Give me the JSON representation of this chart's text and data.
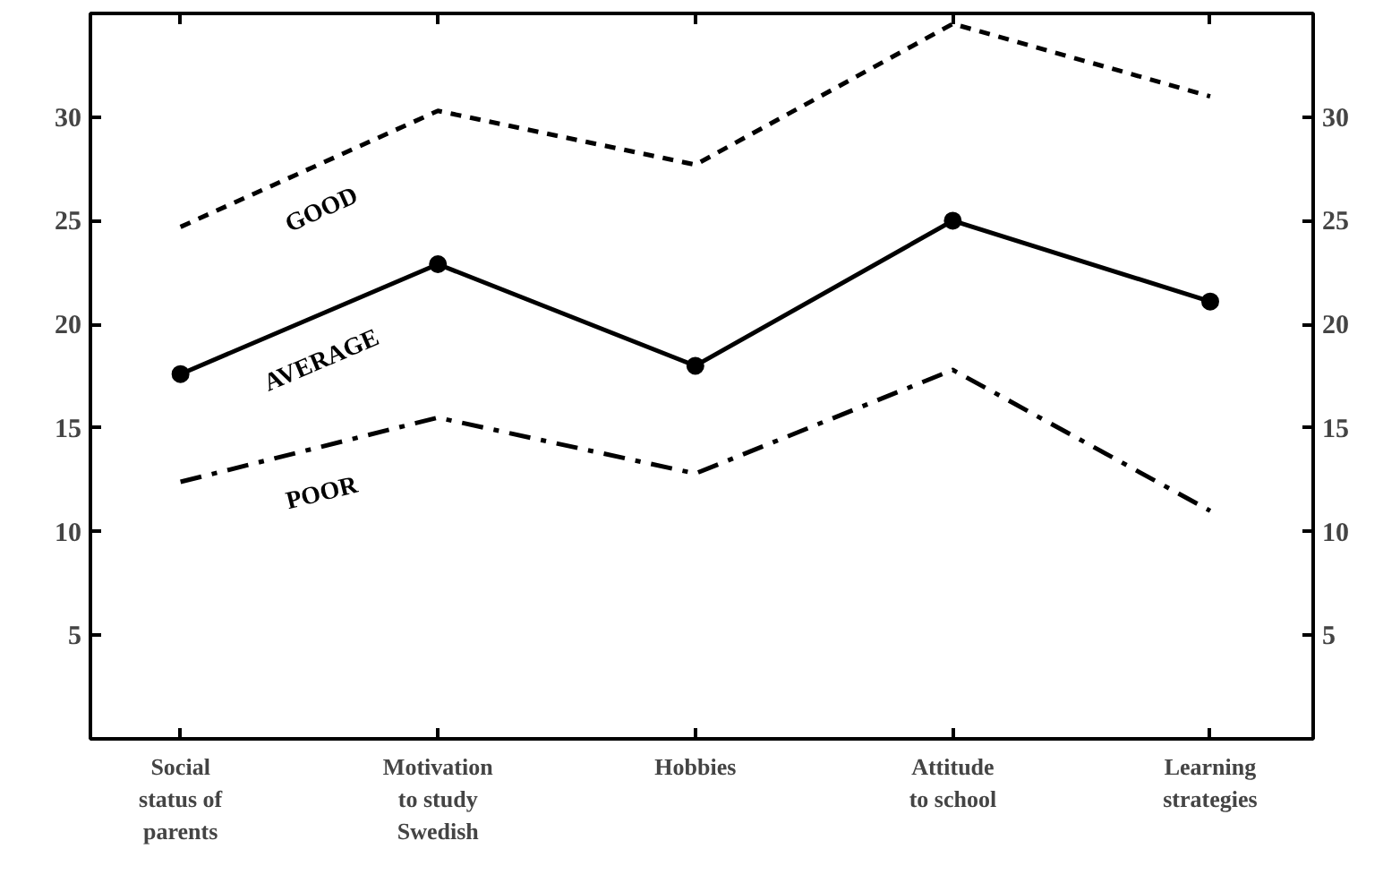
{
  "chart_data": {
    "type": "line",
    "categories": [
      "Social status of parents",
      "Motivation to study Swedish",
      "Hobbies",
      "Attitude to school",
      "Learning strategies"
    ],
    "series": [
      {
        "name": "GOOD",
        "color": "#000000",
        "line_style": "dashed",
        "marker": "none",
        "values": [
          24.7,
          30.3,
          27.7,
          34.5,
          31.0
        ]
      },
      {
        "name": "AVERAGE",
        "color": "#000000",
        "line_style": "solid",
        "marker": "circle",
        "values": [
          17.6,
          22.9,
          18.0,
          25.0,
          21.1
        ]
      },
      {
        "name": "POOR",
        "color": "#000000",
        "line_style": "dashdot",
        "marker": "none",
        "values": [
          12.4,
          15.5,
          12.8,
          17.8,
          11.0
        ]
      }
    ],
    "ylim": [
      0,
      35
    ],
    "yticks": [
      5,
      10,
      15,
      20,
      25,
      30
    ],
    "y2lim": [
      0,
      35
    ],
    "y2ticks": [
      5,
      10,
      15,
      20,
      25,
      30
    ],
    "grid": false
  }
}
